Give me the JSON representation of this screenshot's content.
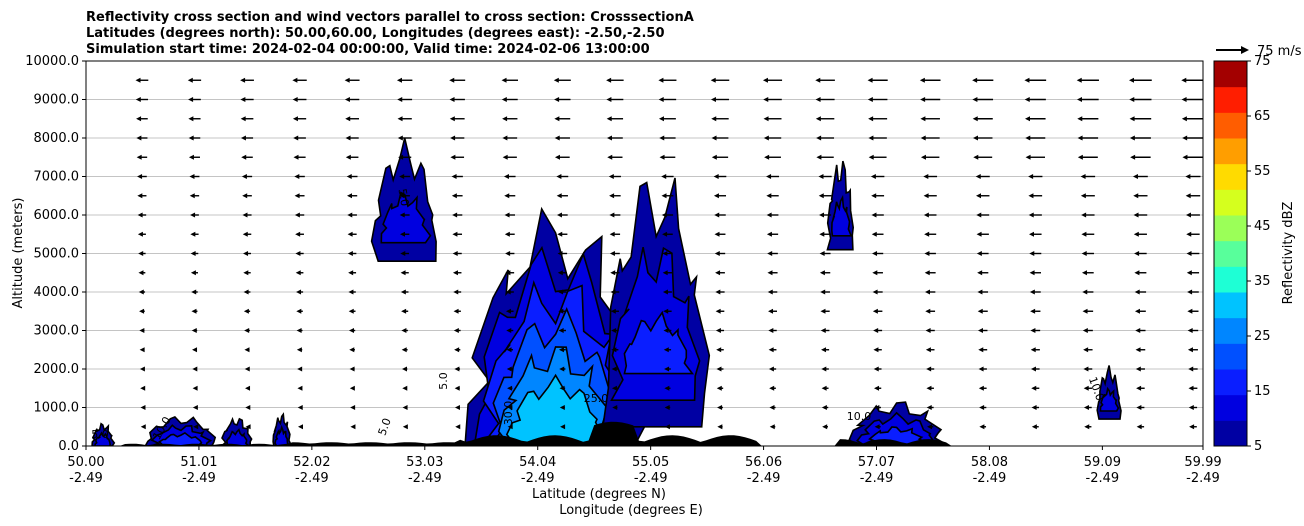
{
  "chart_data": {
    "type": "contourf",
    "title_lines": [
      "Reflectivity cross section and wind vectors parallel to cross section: CrosssectionA",
      "Latitudes (degrees north): 50.00,60.00, Longitudes (degrees east): -2.50,-2.50",
      "Simulation start time: 2024-02-04 00:00:00, Valid time: 2024-02-06 13:00:00"
    ],
    "ylabel": "Altitude (meters)",
    "xlabel_lat": "Latitude (degrees N)",
    "xlabel_lon": "Longitude (degrees E)",
    "xlim": [
      50.0,
      59.99
    ],
    "ylim": [
      0,
      10000
    ],
    "x_ticks": [
      {
        "lat": "50.00",
        "lon": "-2.49",
        "v": 50.0
      },
      {
        "lat": "51.01",
        "lon": "-2.49",
        "v": 51.01
      },
      {
        "lat": "52.02",
        "lon": "-2.49",
        "v": 52.02
      },
      {
        "lat": "53.03",
        "lon": "-2.49",
        "v": 53.03
      },
      {
        "lat": "54.04",
        "lon": "-2.49",
        "v": 54.04
      },
      {
        "lat": "55.05",
        "lon": "-2.49",
        "v": 55.05
      },
      {
        "lat": "56.06",
        "lon": "-2.49",
        "v": 56.06
      },
      {
        "lat": "57.07",
        "lon": "-2.49",
        "v": 57.07
      },
      {
        "lat": "58.08",
        "lon": "-2.49",
        "v": 58.08
      },
      {
        "lat": "59.09",
        "lon": "-2.49",
        "v": 59.09
      },
      {
        "lat": "59.99",
        "lon": "-2.49",
        "v": 59.99
      }
    ],
    "y_ticks": [
      {
        "label": "0.0",
        "v": 0
      },
      {
        "label": "1000.0",
        "v": 1000
      },
      {
        "label": "2000.0",
        "v": 2000
      },
      {
        "label": "3000.0",
        "v": 3000
      },
      {
        "label": "4000.0",
        "v": 4000
      },
      {
        "label": "5000.0",
        "v": 5000
      },
      {
        "label": "6000.0",
        "v": 6000
      },
      {
        "label": "7000.0",
        "v": 7000
      },
      {
        "label": "8000.0",
        "v": 8000
      },
      {
        "label": "9000.0",
        "v": 9000
      },
      {
        "label": "10000.0",
        "v": 10000
      }
    ],
    "grid": "horizontal",
    "quiver_key": "75 m/s",
    "colorbar": {
      "label": "Reflectivity dBZ",
      "levels": [
        5,
        10,
        15,
        20,
        25,
        30,
        35,
        40,
        45,
        50,
        55,
        60,
        65,
        70,
        75
      ],
      "tick_labels": [
        "5",
        "15",
        "25",
        "35",
        "45",
        "55",
        "65",
        "75"
      ],
      "colors": [
        "#0000a3",
        "#0000e0",
        "#0a1eff",
        "#0050ff",
        "#0086ff",
        "#00c3ff",
        "#1effd5",
        "#58ff9b",
        "#9bff58",
        "#d5ff1e",
        "#ffdb00",
        "#ff9e00",
        "#ff5d00",
        "#ff1e00",
        "#a30000"
      ]
    },
    "contour_labels": [
      "5.0",
      "5.0",
      "10.0",
      "25.0",
      "30.0",
      "5.0",
      "5.0",
      "10.0",
      "10.0"
    ],
    "cells": [
      {
        "x": 50.15,
        "top": 600,
        "w": 0.18,
        "levels": [
          5,
          10
        ]
      },
      {
        "x": 50.85,
        "top": 800,
        "w": 0.6,
        "levels": [
          5,
          10,
          15
        ]
      },
      {
        "x": 51.35,
        "top": 750,
        "w": 0.25,
        "levels": [
          5,
          10
        ]
      },
      {
        "x": 51.75,
        "top": 850,
        "w": 0.15,
        "levels": [
          5,
          10
        ]
      },
      {
        "x": 52.85,
        "top": 8000,
        "bottom": 4800,
        "w": 0.55,
        "levels": [
          5,
          10
        ]
      },
      {
        "x": 54.2,
        "top": 6300,
        "w": 1.5,
        "levels": [
          5,
          10,
          15,
          20,
          25,
          30
        ]
      },
      {
        "x": 55.1,
        "top": 7400,
        "bottom": 500,
        "w": 0.9,
        "levels": [
          5,
          10,
          15
        ]
      },
      {
        "x": 56.75,
        "top": 7500,
        "bottom": 5100,
        "w": 0.22,
        "levels": [
          5,
          10
        ]
      },
      {
        "x": 57.25,
        "top": 1200,
        "w": 0.8,
        "levels": [
          5,
          10,
          15
        ]
      },
      {
        "x": 59.15,
        "top": 2100,
        "bottom": 700,
        "w": 0.2,
        "levels": [
          5,
          10
        ]
      }
    ]
  }
}
